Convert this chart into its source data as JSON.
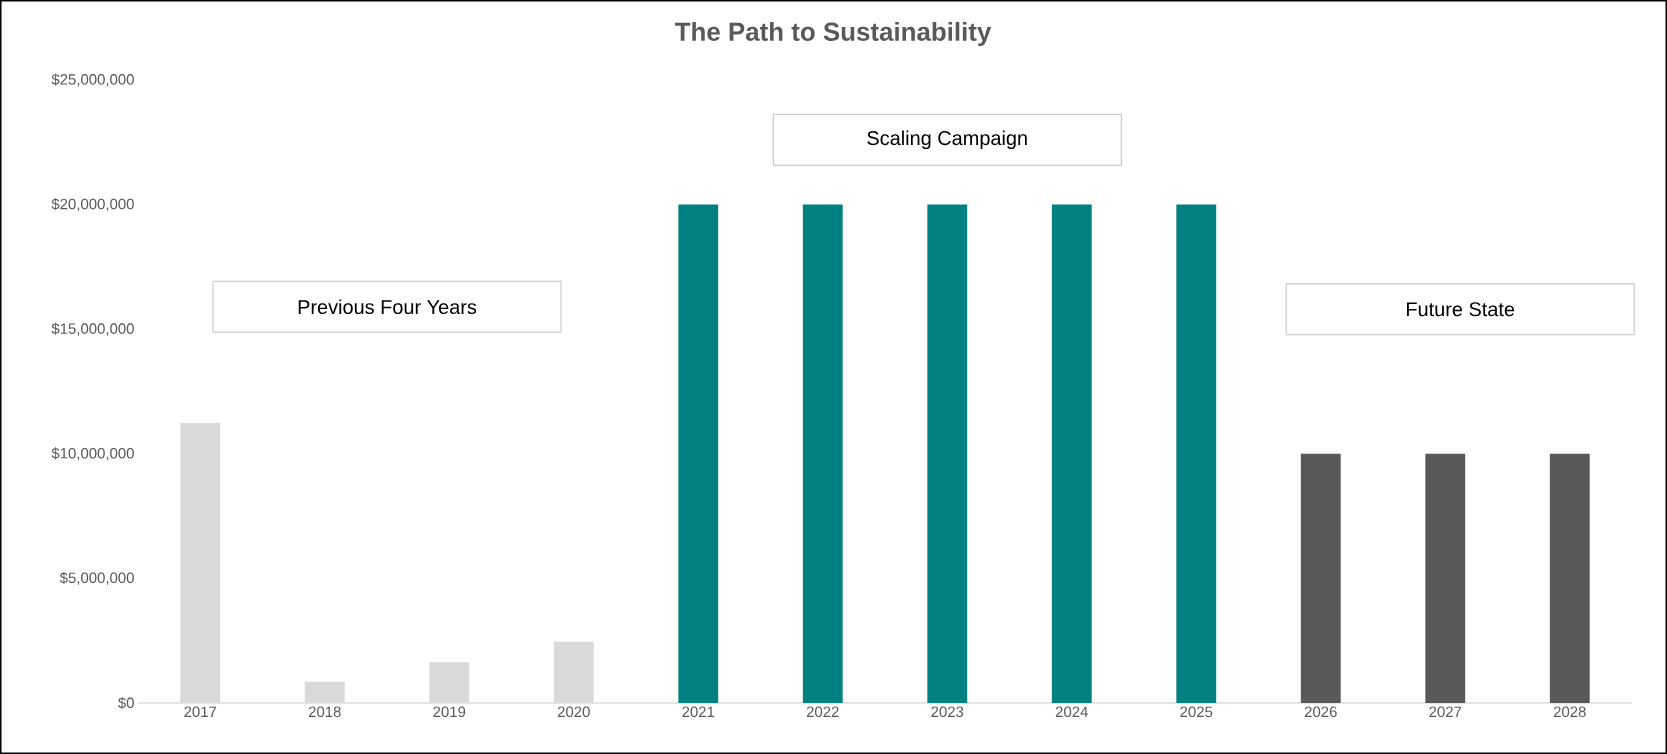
{
  "chart_data": {
    "type": "bar",
    "title": "The Path to Sustainability",
    "categories": [
      "2017",
      "2018",
      "2019",
      "2020",
      "2021",
      "2022",
      "2023",
      "2024",
      "2025",
      "2026",
      "2027",
      "2028"
    ],
    "values": [
      11240000,
      850000,
      1630000,
      2460000,
      20000000,
      20000000,
      20000000,
      20000000,
      20000000,
      10000000,
      10000000,
      10000000
    ],
    "colors": [
      "#d9d9d9",
      "#d9d9d9",
      "#d9d9d9",
      "#d9d9d9",
      "#008080",
      "#008080",
      "#008080",
      "#008080",
      "#008080",
      "#595959",
      "#595959",
      "#595959"
    ],
    "ylim": [
      0,
      25000000
    ],
    "yticks": [
      {
        "value": 0,
        "label": "$0"
      },
      {
        "value": 5000000,
        "label": "$5,000,000"
      },
      {
        "value": 10000000,
        "label": "$10,000,000"
      },
      {
        "value": 15000000,
        "label": "$15,000,000"
      },
      {
        "value": 20000000,
        "label": "$20,000,000"
      },
      {
        "value": 25000000,
        "label": "$25,000,000"
      }
    ],
    "annotations": [
      "Previous Four Years",
      "Scaling Campaign",
      "Future State"
    ],
    "legend": false
  }
}
